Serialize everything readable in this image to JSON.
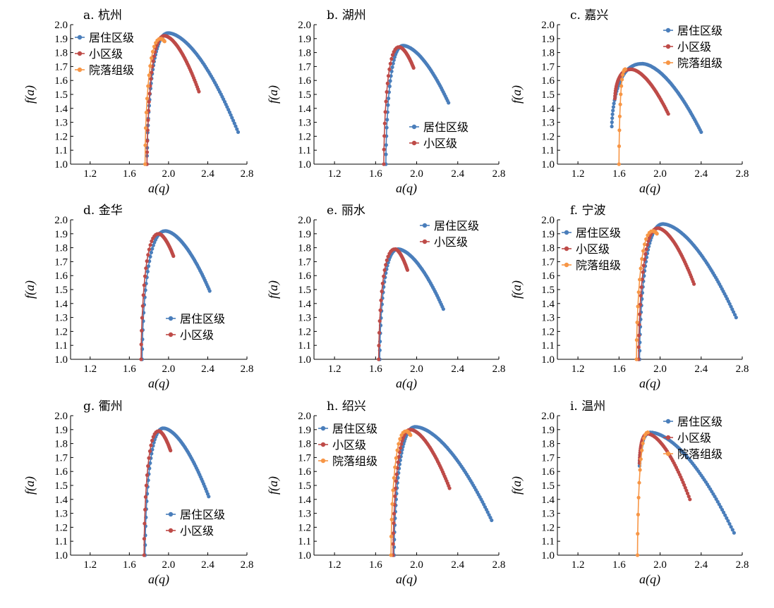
{
  "colors": {
    "series": {
      "居住区级": "#4a7ebb",
      "小区级": "#be4b48",
      "院落组级": "#f79646"
    },
    "axis": "#000000"
  },
  "chart_data": [
    {
      "type": "line",
      "title": "a. 杭州",
      "xlabel": "a(q)",
      "ylabel": "f(a)",
      "xlim": [
        1.0,
        2.8
      ],
      "ylim": [
        1.0,
        2.0
      ],
      "xticks": [
        "1.2",
        "1.6",
        "2.0",
        "2.4",
        "2.8"
      ],
      "yticks": [
        "1.0",
        "1.1",
        "1.2",
        "1.3",
        "1.4",
        "1.5",
        "1.6",
        "1.7",
        "1.8",
        "1.9",
        "2.0"
      ],
      "legend": "top-left",
      "series": [
        {
          "name": "居住区级",
          "start": [
            1.78,
            1.0
          ],
          "peak": [
            2.0,
            1.94
          ],
          "end": [
            2.71,
            1.23
          ]
        },
        {
          "name": "小区级",
          "start": [
            1.78,
            1.0
          ],
          "peak": [
            1.96,
            1.92
          ],
          "end": [
            2.31,
            1.52
          ]
        },
        {
          "name": "院落组级",
          "start": [
            1.76,
            1.0
          ],
          "peak": [
            1.92,
            1.9
          ],
          "end": [
            1.96,
            1.88
          ]
        }
      ]
    },
    {
      "type": "line",
      "title": "b. 湖州",
      "xlabel": "a(q)",
      "ylabel": "f(a)",
      "xlim": [
        1.0,
        2.8
      ],
      "ylim": [
        1.0,
        2.0
      ],
      "xticks": [
        "1.2",
        "1.6",
        "2.0",
        "2.4",
        "2.8"
      ],
      "yticks": [
        "1.0",
        "1.1",
        "1.2",
        "1.3",
        "1.4",
        "1.5",
        "1.6",
        "1.7",
        "1.8",
        "1.9",
        "2.0"
      ],
      "legend": "middle-right",
      "series": [
        {
          "name": "居住区级",
          "start": [
            1.7,
            1.0
          ],
          "peak": [
            1.87,
            1.85
          ],
          "end": [
            2.31,
            1.44
          ]
        },
        {
          "name": "小区级",
          "start": [
            1.68,
            1.0
          ],
          "peak": [
            1.83,
            1.84
          ],
          "end": [
            1.97,
            1.69
          ]
        }
      ]
    },
    {
      "type": "line",
      "title": "c. 嘉兴",
      "xlabel": "a(q)",
      "ylabel": "f(a)",
      "xlim": [
        1.0,
        2.8
      ],
      "ylim": [
        1.0,
        2.0
      ],
      "xticks": [
        "1.2",
        "1.6",
        "2.0",
        "2.4",
        "2.8"
      ],
      "yticks": [
        "1.0",
        "1.1",
        "1.2",
        "1.3",
        "1.4",
        "1.5",
        "1.6",
        "1.7",
        "1.8",
        "1.9",
        "2.0"
      ],
      "legend": "top-right",
      "series": [
        {
          "name": "居住区级",
          "start": [
            1.53,
            1.27
          ],
          "peak": [
            1.83,
            1.72
          ],
          "end": [
            2.4,
            1.23
          ]
        },
        {
          "name": "小区级",
          "start": [
            1.56,
            1.47
          ],
          "peak": [
            1.72,
            1.68
          ],
          "end": [
            2.08,
            1.36
          ]
        },
        {
          "name": "院落组级",
          "start": [
            1.6,
            1.0
          ],
          "peak": [
            1.66,
            1.68
          ],
          "end": [
            1.66,
            1.68
          ]
        }
      ]
    },
    {
      "type": "line",
      "title": "d. 金华",
      "xlabel": "a(q)",
      "ylabel": "f(a)",
      "xlim": [
        1.0,
        2.8
      ],
      "ylim": [
        1.0,
        2.0
      ],
      "xticks": [
        "1.2",
        "1.6",
        "2.0",
        "2.4",
        "2.8"
      ],
      "yticks": [
        "1.0",
        "1.1",
        "1.2",
        "1.3",
        "1.4",
        "1.5",
        "1.6",
        "1.7",
        "1.8",
        "1.9",
        "2.0"
      ],
      "legend": "bottom-right",
      "series": [
        {
          "name": "居住区级",
          "start": [
            1.73,
            1.0
          ],
          "peak": [
            1.97,
            1.92
          ],
          "end": [
            2.42,
            1.49
          ]
        },
        {
          "name": "小区级",
          "start": [
            1.72,
            1.0
          ],
          "peak": [
            1.9,
            1.9
          ],
          "end": [
            2.05,
            1.74
          ]
        }
      ]
    },
    {
      "type": "line",
      "title": "e. 丽水",
      "xlabel": "a(q)",
      "ylabel": "f(a)",
      "xlim": [
        1.0,
        2.8
      ],
      "ylim": [
        1.0,
        2.0
      ],
      "xticks": [
        "1.2",
        "1.6",
        "2.0",
        "2.4",
        "2.8"
      ],
      "yticks": [
        "1.0",
        "1.1",
        "1.2",
        "1.3",
        "1.4",
        "1.5",
        "1.6",
        "1.7",
        "1.8",
        "1.9",
        "2.0"
      ],
      "legend": "top-right",
      "series": [
        {
          "name": "居住区级",
          "start": [
            1.64,
            1.0
          ],
          "peak": [
            1.82,
            1.79
          ],
          "end": [
            2.26,
            1.36
          ]
        },
        {
          "name": "小区级",
          "start": [
            1.63,
            1.0
          ],
          "peak": [
            1.79,
            1.79
          ],
          "end": [
            1.91,
            1.64
          ]
        }
      ]
    },
    {
      "type": "line",
      "title": "f. 宁波",
      "xlabel": "a(q)",
      "ylabel": "f(a)",
      "xlim": [
        1.0,
        2.8
      ],
      "ylim": [
        1.0,
        2.0
      ],
      "xticks": [
        "1.2",
        "1.6",
        "2.0",
        "2.4",
        "2.8"
      ],
      "yticks": [
        "1.0",
        "1.1",
        "1.2",
        "1.3",
        "1.4",
        "1.5",
        "1.6",
        "1.7",
        "1.8",
        "1.9",
        "2.0"
      ],
      "legend": "top-left",
      "series": [
        {
          "name": "居住区级",
          "start": [
            1.8,
            1.0
          ],
          "peak": [
            2.03,
            1.97
          ],
          "end": [
            2.74,
            1.3
          ]
        },
        {
          "name": "小区级",
          "start": [
            1.79,
            1.0
          ],
          "peak": [
            1.98,
            1.94
          ],
          "end": [
            2.33,
            1.54
          ]
        },
        {
          "name": "院落组级",
          "start": [
            1.77,
            1.0
          ],
          "peak": [
            1.93,
            1.92
          ],
          "end": [
            1.97,
            1.9
          ]
        }
      ]
    },
    {
      "type": "line",
      "title": "g. 衢州",
      "xlabel": "a(q)",
      "ylabel": "f(a)",
      "xlim": [
        1.0,
        2.8
      ],
      "ylim": [
        1.0,
        2.0
      ],
      "xticks": [
        "1.2",
        "1.6",
        "2.0",
        "2.4",
        "2.8"
      ],
      "yticks": [
        "1.0",
        "1.1",
        "1.2",
        "1.3",
        "1.4",
        "1.5",
        "1.6",
        "1.7",
        "1.8",
        "1.9",
        "2.0"
      ],
      "legend": "bottom-right",
      "series": [
        {
          "name": "居住区级",
          "start": [
            1.76,
            1.0
          ],
          "peak": [
            1.95,
            1.91
          ],
          "end": [
            2.41,
            1.42
          ]
        },
        {
          "name": "小区级",
          "start": [
            1.75,
            1.0
          ],
          "peak": [
            1.9,
            1.89
          ],
          "end": [
            2.02,
            1.75
          ]
        }
      ]
    },
    {
      "type": "line",
      "title": "h. 绍兴",
      "xlabel": "a(q)",
      "ylabel": "f(a)",
      "xlim": [
        1.0,
        2.8
      ],
      "ylim": [
        1.0,
        2.0
      ],
      "xticks": [
        "1.2",
        "1.6",
        "2.0",
        "2.4",
        "2.8"
      ],
      "yticks": [
        "1.0",
        "1.1",
        "1.2",
        "1.3",
        "1.4",
        "1.5",
        "1.6",
        "1.7",
        "1.8",
        "1.9",
        "2.0"
      ],
      "legend": "top-left",
      "series": [
        {
          "name": "居住区级",
          "start": [
            1.78,
            1.0
          ],
          "peak": [
            1.99,
            1.92
          ],
          "end": [
            2.73,
            1.25
          ]
        },
        {
          "name": "小区级",
          "start": [
            1.77,
            1.0
          ],
          "peak": [
            1.94,
            1.9
          ],
          "end": [
            2.32,
            1.48
          ]
        },
        {
          "name": "院落组级",
          "start": [
            1.75,
            1.0
          ],
          "peak": [
            1.9,
            1.89
          ],
          "end": [
            1.94,
            1.86
          ]
        }
      ]
    },
    {
      "type": "line",
      "title": "i. 温州",
      "xlabel": "a(q)",
      "ylabel": "f(a)",
      "xlim": [
        1.0,
        2.8
      ],
      "ylim": [
        1.0,
        2.0
      ],
      "xticks": [
        "1.2",
        "1.6",
        "2.0",
        "2.4",
        "2.8"
      ],
      "yticks": [
        "1.0",
        "1.1",
        "1.2",
        "1.3",
        "1.4",
        "1.5",
        "1.6",
        "1.7",
        "1.8",
        "1.9",
        "2.0"
      ],
      "legend": "top-right",
      "series": [
        {
          "name": "居住区级",
          "start": [
            1.8,
            1.64
          ],
          "peak": [
            1.91,
            1.88
          ],
          "end": [
            2.72,
            1.16
          ]
        },
        {
          "name": "小区级",
          "start": [
            1.8,
            1.66
          ],
          "peak": [
            1.88,
            1.87
          ],
          "end": [
            2.29,
            1.4
          ]
        },
        {
          "name": "院落组级",
          "start": [
            1.78,
            1.0
          ],
          "peak": [
            1.88,
            1.88
          ],
          "end": [
            1.88,
            1.88
          ]
        }
      ]
    }
  ]
}
